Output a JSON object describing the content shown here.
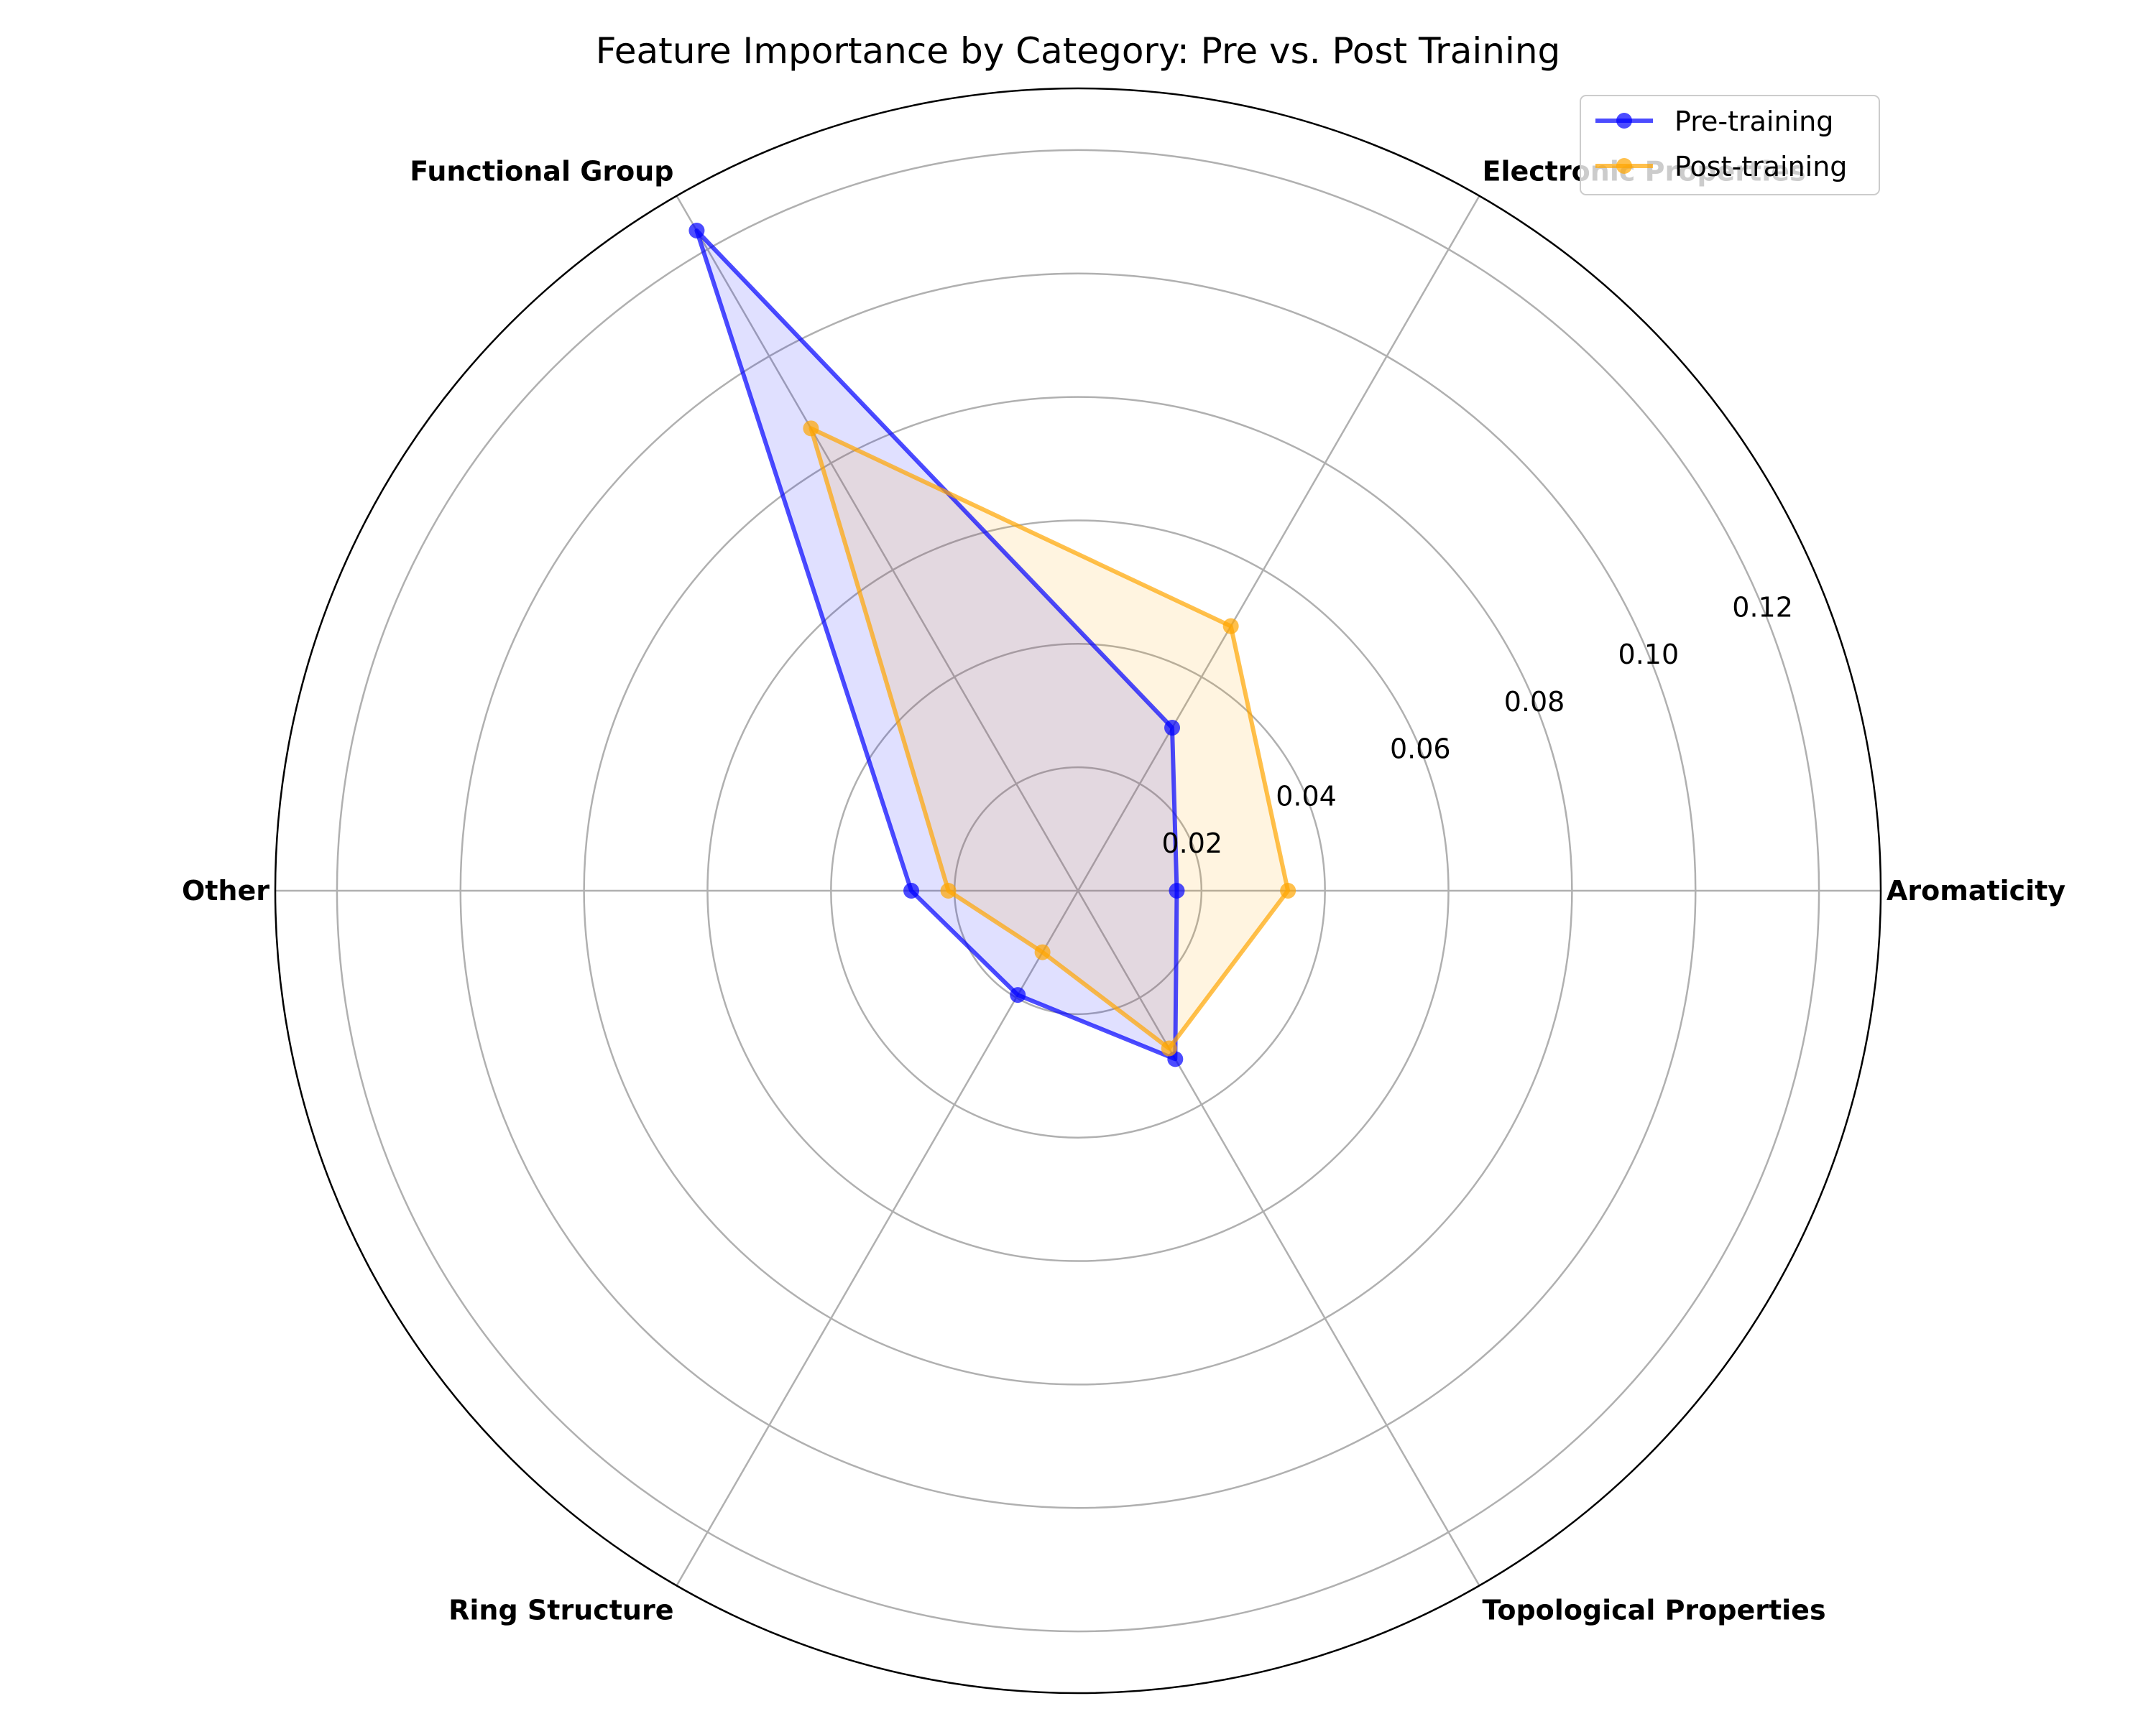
{
  "chart_data": {
    "type": "radar",
    "title": "Feature Importance by Category: Pre vs. Post Training",
    "categories": [
      "Aromaticity",
      "Electronic Properties",
      "Functional Group",
      "Other",
      "Ring Structure",
      "Topological Properties"
    ],
    "radial_ticks": [
      "0.02",
      "0.04",
      "0.06",
      "0.08",
      "0.10",
      "0.12"
    ],
    "rlim": [
      0,
      0.13
    ],
    "grid": true,
    "legend_position": "top-right",
    "series": [
      {
        "name": "Pre-training",
        "color": "#0000ff",
        "values": [
          0.016,
          0.0305,
          0.1235,
          0.027,
          0.0195,
          0.0315
        ]
      },
      {
        "name": "Post-training",
        "color": "#ffa500",
        "values": [
          0.034,
          0.0495,
          0.0865,
          0.021,
          0.0115,
          0.0295
        ]
      }
    ]
  }
}
